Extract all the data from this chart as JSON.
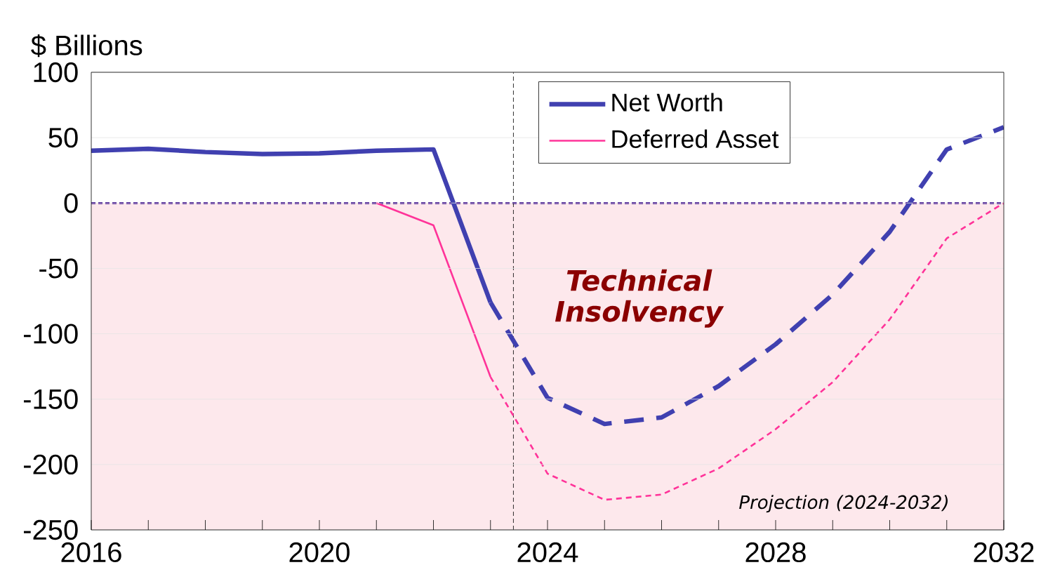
{
  "chart_data": {
    "type": "line",
    "ylabel": "$ Billions",
    "xlim": [
      2016,
      2032
    ],
    "ylim": [
      -250,
      100
    ],
    "xticks": [
      2016,
      {
        "value": 2017,
        "label": null
      },
      {
        "value": 2018,
        "label": null
      },
      {
        "value": 2019,
        "label": null
      },
      2020,
      {
        "value": 2021,
        "label": null
      },
      {
        "value": 2022,
        "label": null
      },
      {
        "value": 2023,
        "label": null
      },
      2024,
      {
        "value": 2025,
        "label": null
      },
      {
        "value": 2026,
        "label": null
      },
      {
        "value": 2027,
        "label": null
      },
      2028,
      {
        "value": 2029,
        "label": null
      },
      {
        "value": 2030,
        "label": null
      },
      {
        "value": 2031,
        "label": null
      },
      2032
    ],
    "yticks": [
      -250,
      -200,
      -150,
      -100,
      -50,
      0,
      50,
      100
    ],
    "grid": "y",
    "legend": "top",
    "marker": "none",
    "series": [
      {
        "name": "Net Worth",
        "color": "#4040b0",
        "line_style": "solid",
        "x": [
          2016,
          2017,
          2018,
          2019,
          2020,
          2021,
          2022,
          2023
        ],
        "values": [
          40,
          41.5,
          39,
          37.5,
          38,
          40,
          41,
          -76
        ]
      },
      {
        "color": "#4040b0",
        "line_style": "dashed",
        "x": [
          2023,
          2024,
          2025,
          2026,
          2027,
          2028,
          2029,
          2030,
          2031,
          2032
        ],
        "values": [
          -76,
          -149,
          -169,
          -164,
          -140,
          -108,
          -70,
          -22,
          41,
          58
        ]
      },
      {
        "name": "Deferred Asset",
        "color": "#ff3399",
        "line_style": "solid",
        "x": [
          2021,
          2022,
          2023
        ],
        "values": [
          0,
          -17,
          -133
        ]
      },
      {
        "color": "#ff3399",
        "line_style": "dotted",
        "x": [
          2023,
          2024,
          2025,
          2026,
          2027,
          2028,
          2029,
          2030,
          2031,
          2032
        ],
        "values": [
          -133,
          -207,
          -227,
          -223,
          -203,
          -173,
          -137,
          -89,
          -27,
          0
        ]
      }
    ],
    "ref_lines": [
      {
        "axis": "y",
        "value": 0,
        "color": "#330088",
        "line_style": "dashed"
      },
      {
        "axis": "x",
        "value": 2023.4,
        "color": "#000000",
        "line_style": "dashed"
      }
    ],
    "bands": [
      {
        "axis": "y",
        "from": -250,
        "to": 0,
        "color": "#fde8ec"
      }
    ],
    "annotations": [
      "Technical Insolvency",
      "Projection (2024-2032)"
    ]
  }
}
